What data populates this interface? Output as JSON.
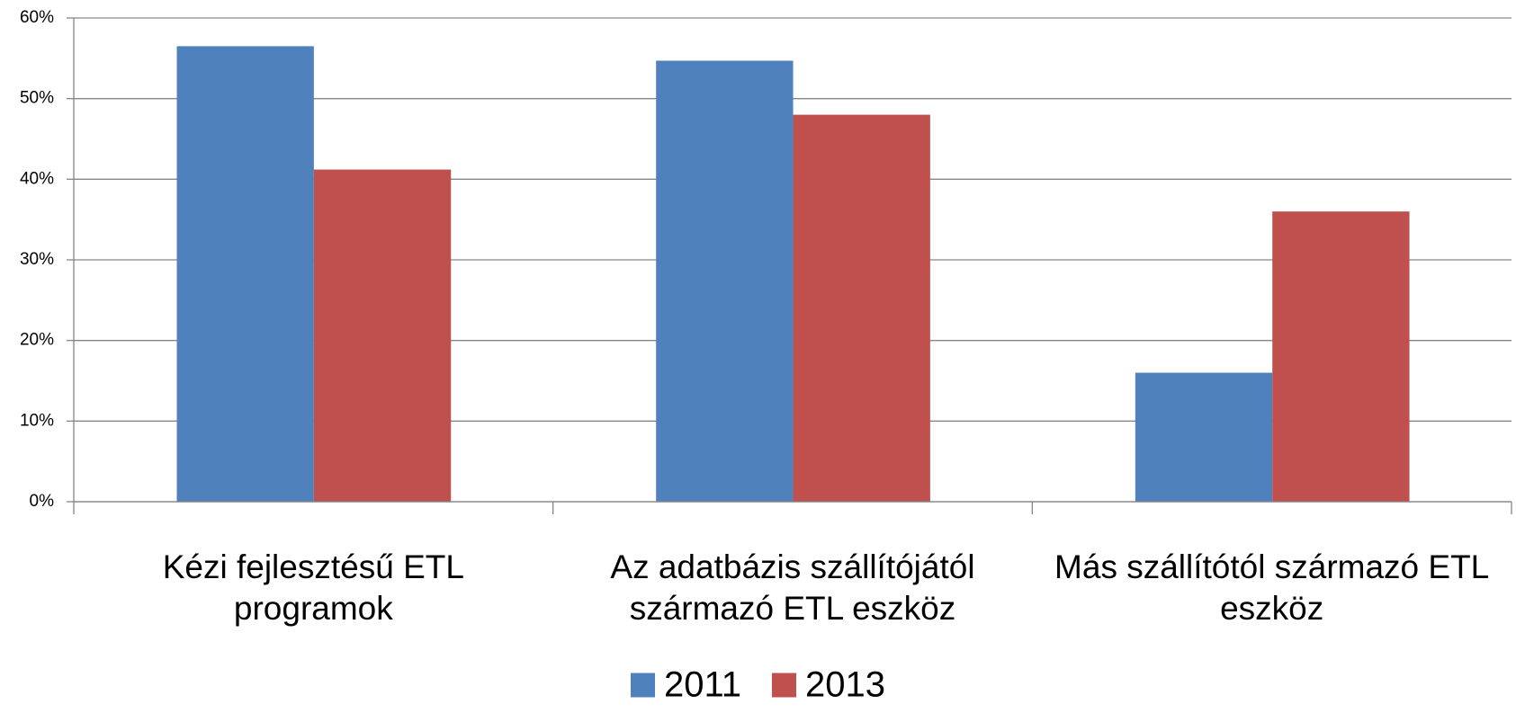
{
  "chart_data": {
    "type": "bar",
    "categories": [
      "Kézi fejlesztésű ETL programok",
      "Az adatbázis szállítójától származó ETL eszköz",
      "Más szállítótól származó ETL eszköz"
    ],
    "series": [
      {
        "name": "2011",
        "color": "#4f81bd",
        "values": [
          56.5,
          54.7,
          16.0
        ]
      },
      {
        "name": "2013",
        "color": "#c0504d",
        "values": [
          41.2,
          48.0,
          36.0
        ]
      }
    ],
    "ylim": [
      0,
      60
    ],
    "yticks": [
      {
        "value": 0,
        "label": "0%"
      },
      {
        "value": 10,
        "label": "10%"
      },
      {
        "value": 20,
        "label": "20%"
      },
      {
        "value": 30,
        "label": "30%"
      },
      {
        "value": 40,
        "label": "40%"
      },
      {
        "value": 50,
        "label": "50%"
      },
      {
        "value": 60,
        "label": "60%"
      }
    ],
    "grid": true,
    "legend": "bottom"
  }
}
